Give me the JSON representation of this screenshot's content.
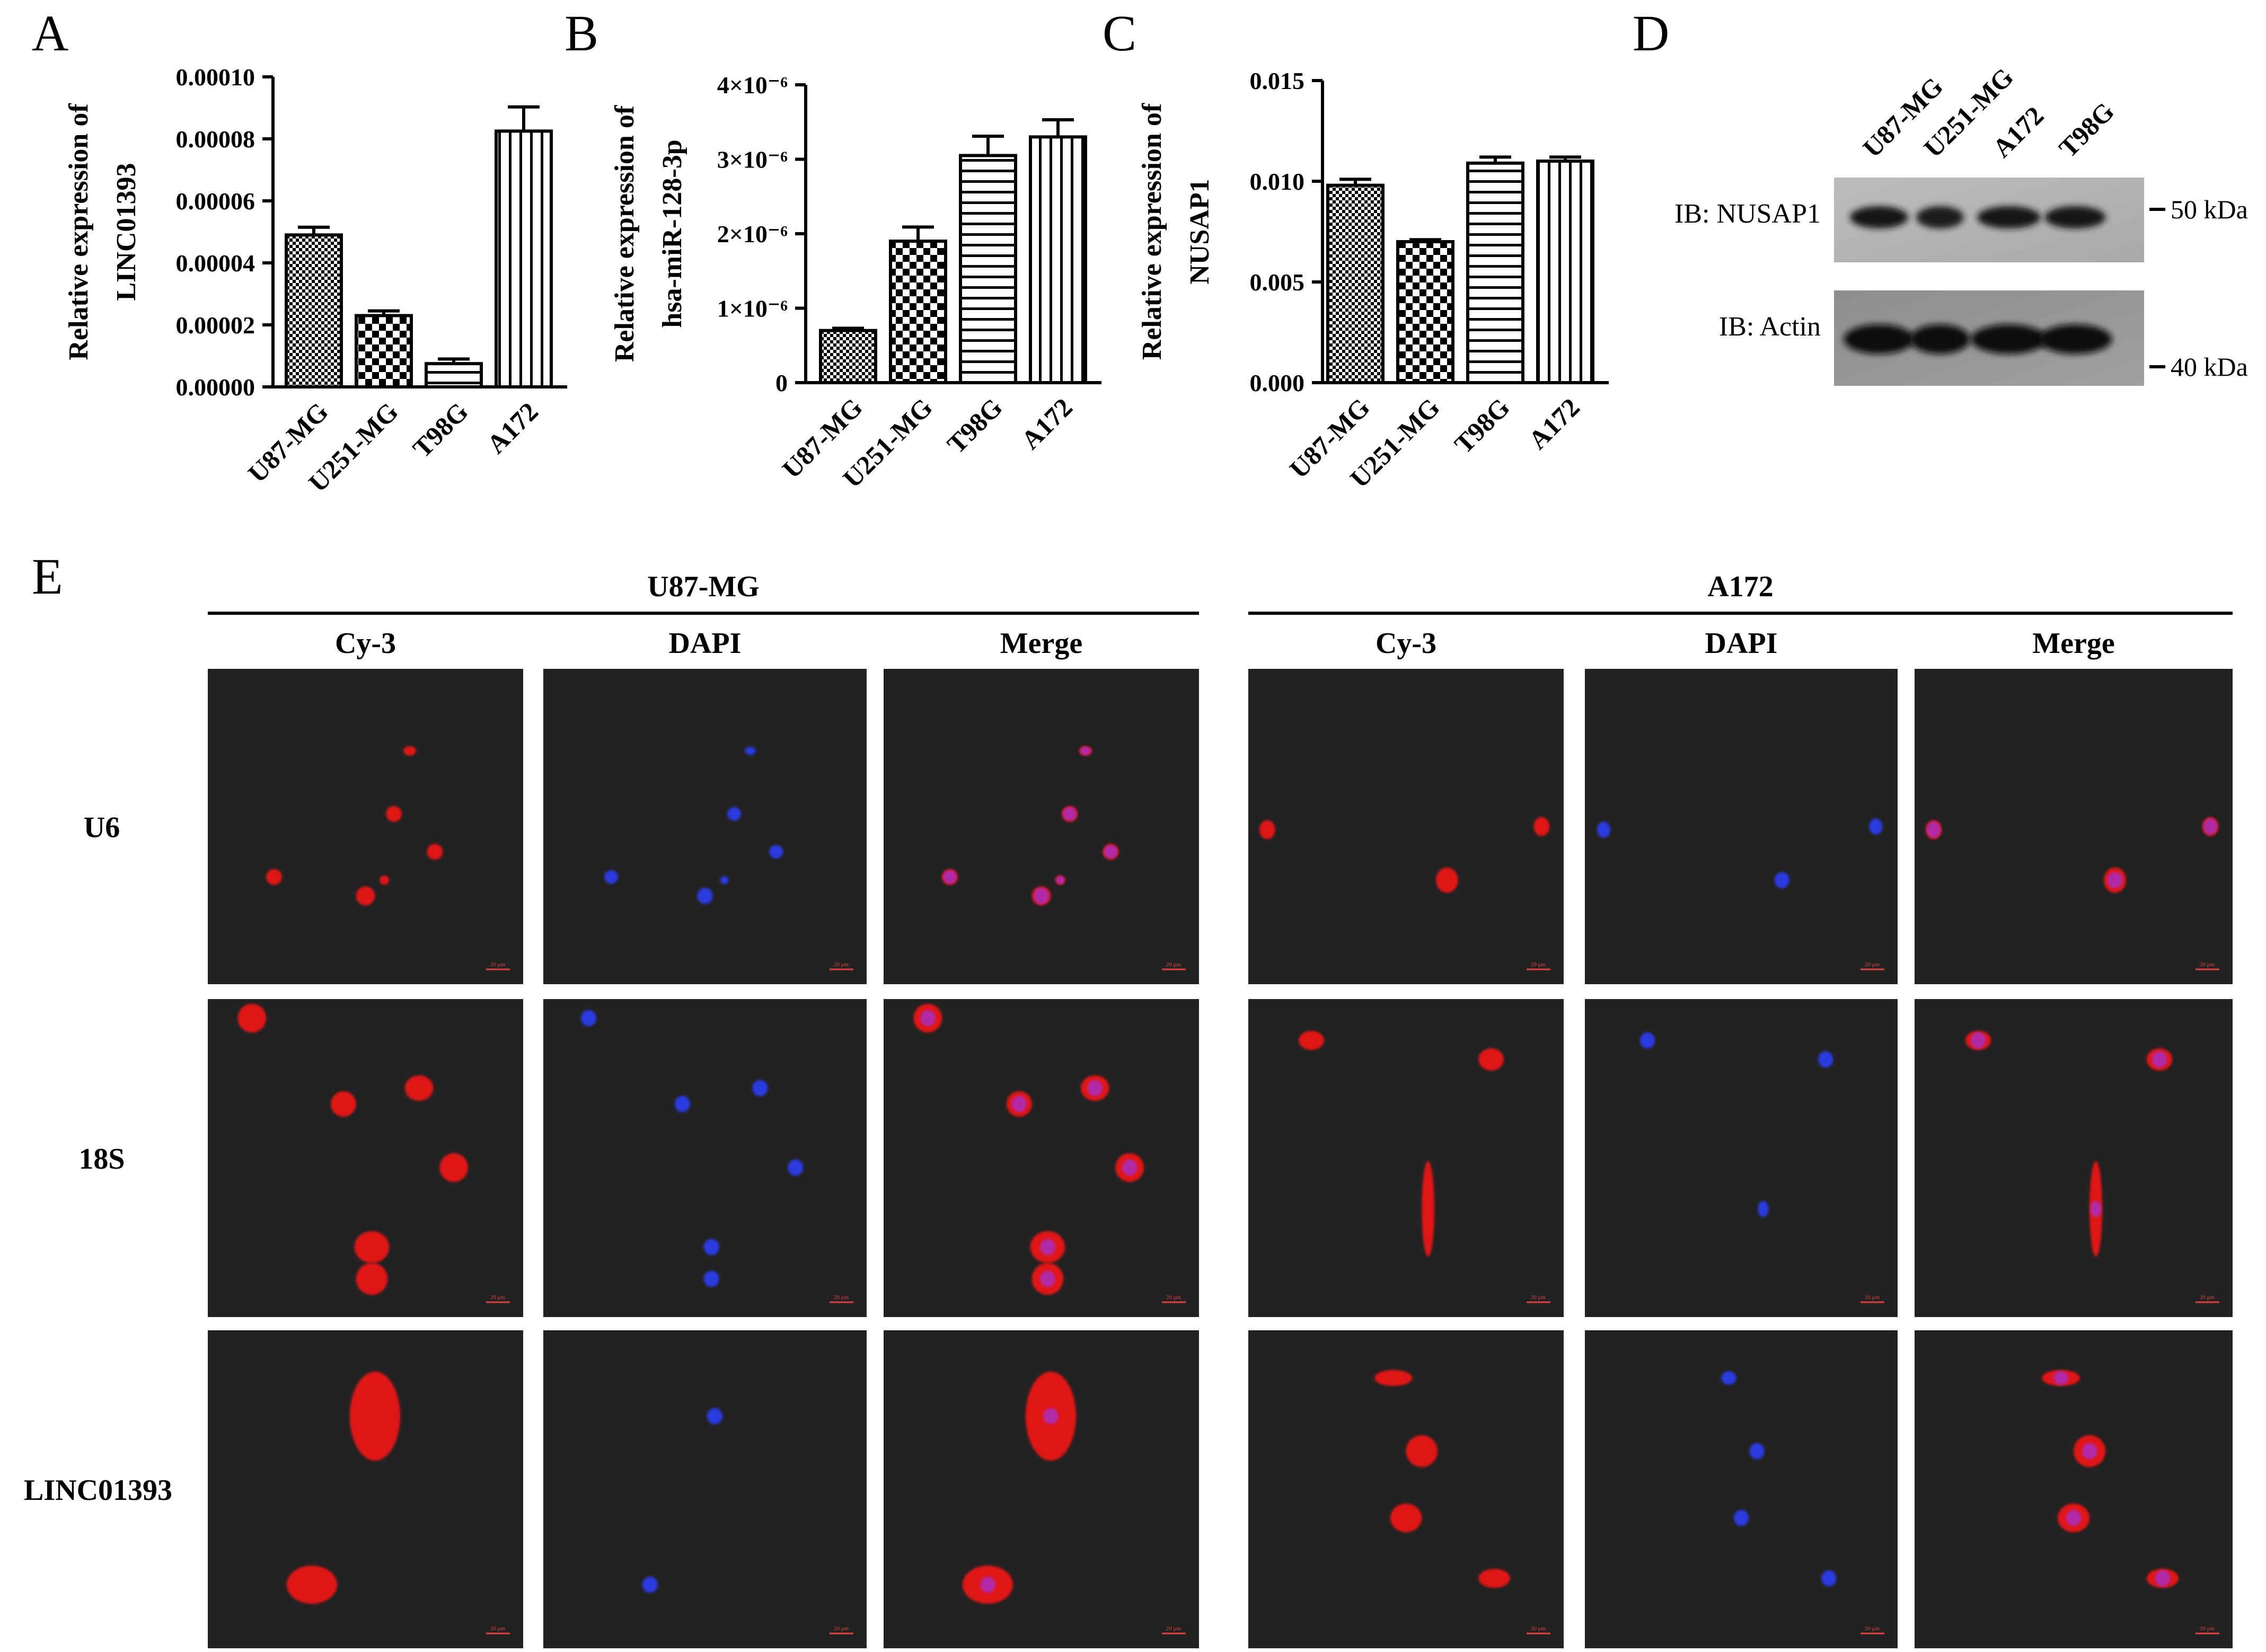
{
  "panel_labels": {
    "a": "A",
    "b": "B",
    "c": "C",
    "d": "D",
    "e": "E"
  },
  "chart_data": [
    {
      "panel": "A",
      "type": "bar",
      "title": "",
      "xlabel": "",
      "ylabel_lines": [
        "Relative expression of",
        "LINC01393"
      ],
      "categories": [
        "U87-MG",
        "U251-MG",
        "T98G",
        "A172"
      ],
      "values": [
        4.9e-05,
        2.3e-05,
        7.5e-06,
        8.25e-05
      ],
      "errors": [
        2.5e-06,
        1.5e-06,
        1.5e-06,
        7.8e-06
      ],
      "ylim": [
        0,
        0.0001
      ],
      "ticks": [
        0,
        2e-05,
        4e-05,
        6e-05,
        8e-05,
        0.0001
      ],
      "tick_labels": [
        "0.00000",
        "0.00002",
        "0.00004",
        "0.00006",
        "0.00008",
        "0.00010"
      ],
      "patterns": [
        "checker-small",
        "checker-large",
        "horizontal",
        "vertical"
      ],
      "grid": false,
      "legend": "none"
    },
    {
      "panel": "B",
      "type": "bar",
      "title": "",
      "xlabel": "",
      "ylabel_lines": [
        "Relative expression of",
        "hsa-miR-128-3p"
      ],
      "categories": [
        "U87-MG",
        "U251-MG",
        "T98G",
        "A172"
      ],
      "values": [
        7e-07,
        1.9e-06,
        3.05e-06,
        3.3e-06
      ],
      "errors": [
        3e-08,
        1.9e-07,
        2.6e-07,
        2.3e-07
      ],
      "ylim": [
        0,
        4e-06
      ],
      "ticks": [
        0,
        1e-06,
        2e-06,
        3e-06,
        4e-06
      ],
      "tick_labels": [
        "0",
        "1×10⁻⁶",
        "2×10⁻⁶",
        "3×10⁻⁶",
        "4×10⁻⁶"
      ],
      "patterns": [
        "checker-small",
        "checker-large",
        "horizontal",
        "vertical"
      ],
      "grid": false,
      "legend": "none"
    },
    {
      "panel": "C",
      "type": "bar",
      "title": "",
      "xlabel": "",
      "ylabel_lines": [
        "Relative expression of",
        "NUSAP1"
      ],
      "categories": [
        "U87-MG",
        "U251-MG",
        "T98G",
        "A172"
      ],
      "values": [
        0.0098,
        0.007,
        0.0109,
        0.011
      ],
      "errors": [
        0.0003,
        0.0001,
        0.0003,
        0.0002
      ],
      "ylim": [
        0,
        0.015
      ],
      "ticks": [
        0,
        0.005,
        0.01,
        0.015
      ],
      "tick_labels": [
        "0.000",
        "0.005",
        "0.010",
        "0.015"
      ],
      "patterns": [
        "checker-small",
        "checker-large",
        "horizontal",
        "vertical"
      ],
      "grid": false,
      "legend": "none"
    }
  ],
  "western_blot": {
    "lanes": [
      "U87-MG",
      "U251-MG",
      "A172",
      "T98G"
    ],
    "rows": [
      {
        "label": "IB: NUSAP1",
        "marker": "50 kDa",
        "band_intensity": [
          0.85,
          0.7,
          0.9,
          0.88
        ]
      },
      {
        "label": "IB: Actin",
        "marker": "40 kDa",
        "band_intensity": [
          0.95,
          0.95,
          0.95,
          0.95
        ]
      }
    ]
  },
  "fish": {
    "groups": [
      {
        "name": "U87-MG",
        "channels": [
          "Cy-3",
          "DAPI",
          "Merge"
        ]
      },
      {
        "name": "A172",
        "channels": [
          "Cy-3",
          "DAPI",
          "Merge"
        ]
      }
    ],
    "rows": [
      "U6",
      "18S",
      "LINC01393"
    ],
    "scale_bar": "20 μm",
    "colors": {
      "cy3": "#e01818",
      "dapi": "#2a3ae0",
      "merge": "#b02aa8",
      "background": "#222222"
    }
  }
}
